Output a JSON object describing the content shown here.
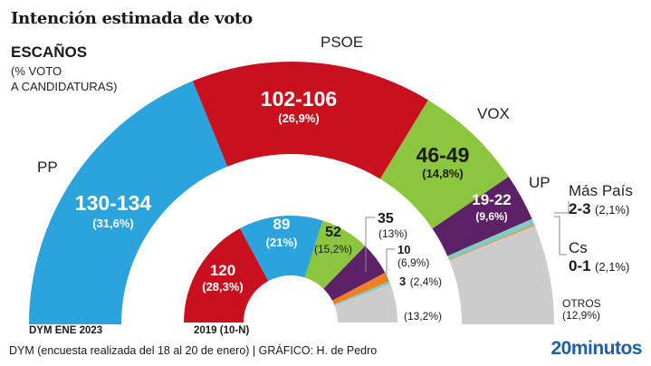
{
  "title": "Intención estimada de voto",
  "subtitle": {
    "main": "ESCAÑOS",
    "line1": "(% VOTO",
    "line2": "A CANDIDATURAS)"
  },
  "chart_data": [
    {
      "type": "pie",
      "variant": "half-donut",
      "caption": "DYM ENE 2023",
      "series": [
        {
          "name": "PP",
          "seats": "130-134",
          "seats_mid": 132,
          "pct": "(31,6%)",
          "color": "#2ba3dd"
        },
        {
          "name": "PSOE",
          "seats": "102-106",
          "seats_mid": 104,
          "pct": "(26,9%)",
          "color": "#c8101e"
        },
        {
          "name": "VOX",
          "seats": "46-49",
          "seats_mid": 47.5,
          "pct": "(14,8%)",
          "color": "#8cc63f"
        },
        {
          "name": "UP",
          "seats": "19-22",
          "seats_mid": 20.5,
          "pct": "(9,6%)",
          "color": "#5d2168"
        },
        {
          "name": "Más País",
          "seats": "2-3",
          "seats_mid": 2.5,
          "pct": "(2,1%)",
          "color": "#7fccc5"
        },
        {
          "name": "Cs",
          "seats": "0-1",
          "seats_mid": 0.5,
          "pct": "(2,1%)",
          "color": "#f07f22"
        },
        {
          "name": "OTROS",
          "seats_mid": 43,
          "pct": "(12,9%)",
          "color": "#cccccc"
        }
      ]
    },
    {
      "type": "pie",
      "variant": "half-donut",
      "caption": "2019 (10-N)",
      "series": [
        {
          "party": "PSOE",
          "seats": "120",
          "value": 120,
          "pct": "(28,3%)",
          "color": "#c8101e"
        },
        {
          "party": "PP",
          "seats": "89",
          "value": 89,
          "pct": "(21%)",
          "color": "#2ba3dd"
        },
        {
          "party": "VOX",
          "seats": "52",
          "value": 52,
          "pct": "(15,2%)",
          "color": "#8cc63f"
        },
        {
          "party": "UP",
          "seats": "35",
          "value": 35,
          "pct": "(13%)",
          "color": "#5d2168"
        },
        {
          "party": "Cs",
          "seats": "10",
          "value": 10,
          "pct": "(6,9%)",
          "color": "#f07f22"
        },
        {
          "party": "Más País",
          "seats": "3",
          "value": 3,
          "pct": "(2,4%)",
          "color": "#7fccc5"
        },
        {
          "party": "OTROS",
          "value": 41,
          "pct": "(13,2%)",
          "color": "#cccccc"
        }
      ]
    }
  ],
  "footer": {
    "source": "DYM (encuesta realizada del 18 al 20 de enero)   |  GRÁFICO: H. de Pedro",
    "logo": "20minutos"
  }
}
